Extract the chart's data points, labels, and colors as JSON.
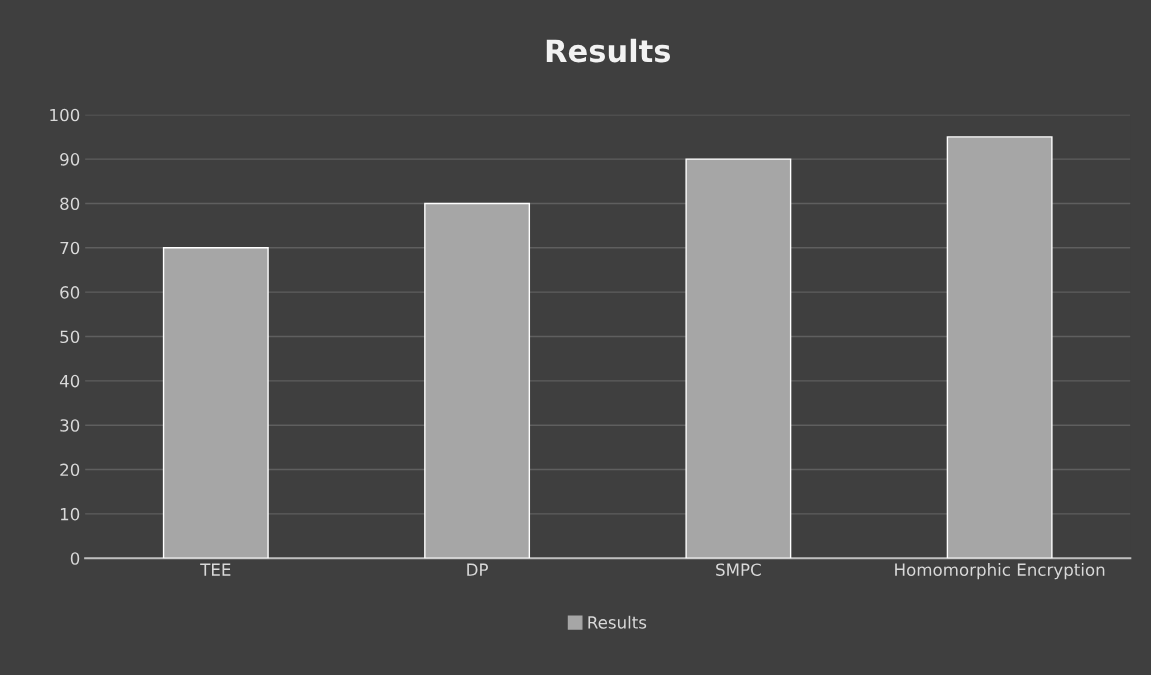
{
  "chart_data": {
    "type": "bar",
    "title": "Results",
    "categories": [
      "TEE",
      "DP",
      "SMPC",
      "Homomorphic Encryption"
    ],
    "series": [
      {
        "name": "Results",
        "color": "#a6a6a6",
        "values": [
          70,
          80,
          90,
          95
        ]
      }
    ],
    "ylim": [
      0,
      100
    ],
    "yticks": [
      0,
      10,
      20,
      30,
      40,
      50,
      60,
      70,
      80,
      90,
      100
    ],
    "grid": "y",
    "legend": "bottom"
  }
}
